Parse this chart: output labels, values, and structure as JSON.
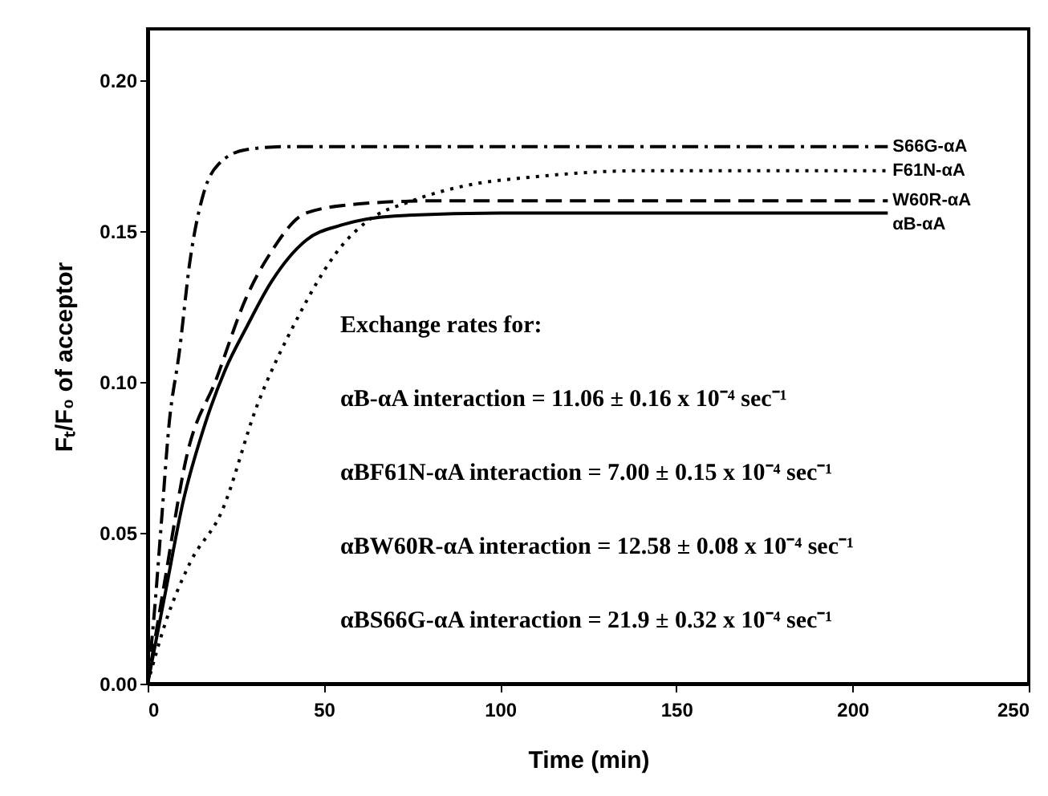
{
  "chart_data": {
    "type": "line",
    "xlabel": "Time (min)",
    "ylabel": "Fₜ/F₀ of acceptor",
    "xlim": [
      0,
      250
    ],
    "xticks": [
      0,
      50,
      100,
      150,
      200,
      250
    ],
    "ylim": [
      0,
      0.217
    ],
    "yticks": [
      {
        "value": 0,
        "label": "0.00"
      },
      0.05,
      {
        "value": 0.1,
        "label": "0.10"
      },
      0.15,
      {
        "value": 0.2,
        "label": "0.20"
      }
    ],
    "grid": false,
    "marker": "none",
    "series": [
      {
        "name": "S66G-αA",
        "color": "#000000",
        "line_style": "dashdot",
        "x": [
          0,
          2,
          4,
          6,
          9,
          12,
          16,
          20,
          28,
          40,
          210
        ],
        "values": [
          0,
          0.025,
          0.055,
          0.085,
          0.11,
          0.14,
          0.163,
          0.172,
          0.177,
          0.178,
          0.178
        ]
      },
      {
        "name": "F61N-αA",
        "color": "#000000",
        "line_style": "dotted",
        "x": [
          0,
          5,
          12,
          21,
          31,
          42,
          55,
          62,
          75,
          90,
          110,
          140,
          210
        ],
        "values": [
          0,
          0.02,
          0.04,
          0.057,
          0.092,
          0.12,
          0.145,
          0.153,
          0.16,
          0.165,
          0.168,
          0.17,
          0.17
        ]
      },
      {
        "name": "W60R-αA",
        "color": "#000000",
        "line_style": "dashed",
        "x": [
          0,
          5,
          11,
          19.5,
          28,
          35,
          45,
          60,
          80,
          210
        ],
        "values": [
          0,
          0.035,
          0.075,
          0.101,
          0.128,
          0.143,
          0.156,
          0.159,
          0.16,
          0.16
        ]
      },
      {
        "name": "αB-αA",
        "color": "#000000",
        "line_style": "solid",
        "x": [
          0,
          5,
          10,
          16,
          22,
          28,
          35,
          45,
          55,
          70,
          100,
          210
        ],
        "values": [
          0,
          0.03,
          0.06,
          0.085,
          0.104,
          0.118,
          0.133,
          0.147,
          0.152,
          0.155,
          0.156,
          0.156
        ]
      }
    ],
    "annotations": [
      "Exchange rates for:",
      "αB-αA interaction = 11.06 ± 0.16 x 10⁻⁴ sec⁻¹",
      "αBF61N-αA interaction = 7.00 ± 0.15 x 10⁻⁴ sec⁻¹",
      "αBW60R-αA interaction = 12.58 ± 0.08 x 10⁻⁴ sec⁻¹",
      "αBS66G-αA interaction = 21.9 ± 0.32 x 10⁻⁴ sec⁻¹"
    ]
  }
}
